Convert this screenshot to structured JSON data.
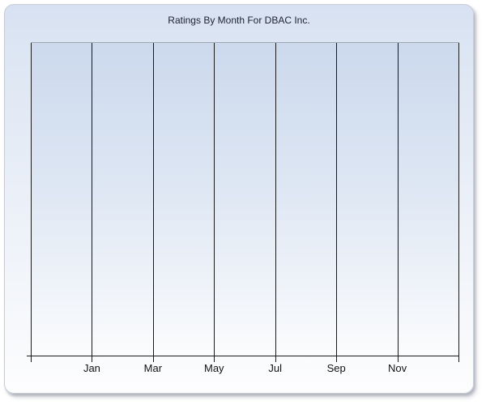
{
  "chart_data": {
    "type": "line",
    "title": "Ratings By Month For DBAC Inc.",
    "x_axis": {
      "tick_labels": [
        "Jan",
        "Mar",
        "May",
        "Jul",
        "Sep",
        "Nov"
      ],
      "gridline_count": 8,
      "labeled_gridline_indexes": [
        1,
        2,
        3,
        4,
        5,
        6
      ]
    },
    "y_axis": {
      "tick_labels": [],
      "gridlines_visible": false
    },
    "series": [],
    "plot_is_empty": true,
    "legend_visible": false,
    "colors": {
      "title_text": "#1c2130",
      "axis_and_gridlines": "#1a1a1a",
      "plot_top_border": "#9ea7b3",
      "plot_gradient_top": "#ccd9ed",
      "plot_gradient_bottom": "#fbfcfd",
      "panel_gradient_top": "#d7e1f2",
      "panel_gradient_bottom": "#fdfdfe",
      "panel_border": "#c7ccd6",
      "tick_label_text": "#111111"
    }
  }
}
